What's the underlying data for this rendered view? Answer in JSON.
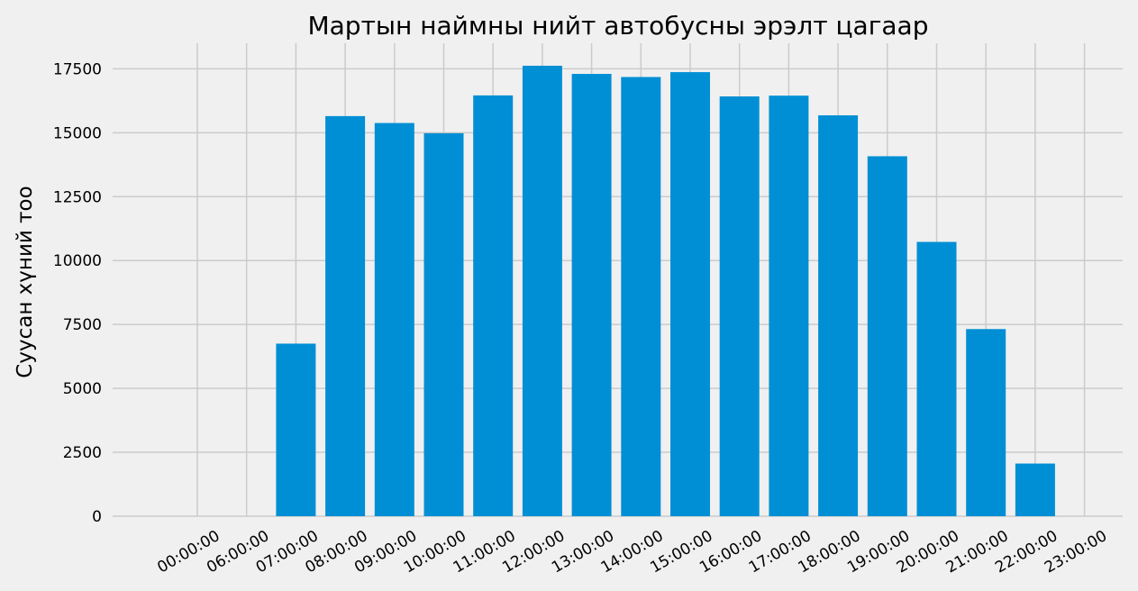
{
  "chart_data": {
    "type": "bar",
    "title": "Мартын наймны нийт автобусны эрэлт цагаар",
    "xlabel": "",
    "ylabel": "Суусан хүний тоо",
    "categories": [
      "00:00:00",
      "06:00:00",
      "07:00:00",
      "08:00:00",
      "09:00:00",
      "10:00:00",
      "11:00:00",
      "12:00:00",
      "13:00:00",
      "14:00:00",
      "15:00:00",
      "16:00:00",
      "17:00:00",
      "18:00:00",
      "19:00:00",
      "20:00:00",
      "21:00:00",
      "22:00:00",
      "23:00:00"
    ],
    "values": [
      0,
      0,
      6750,
      15650,
      15380,
      14980,
      16460,
      17620,
      17300,
      17180,
      17370,
      16420,
      16450,
      15680,
      14080,
      10730,
      7320,
      2060,
      0
    ],
    "ylim": [
      0,
      18500
    ],
    "yticks": [
      0,
      2500,
      5000,
      7500,
      10000,
      12500,
      15000,
      17500
    ],
    "ytick_labels": [
      "0",
      "2500",
      "5000",
      "7500",
      "10000",
      "12500",
      "15000",
      "17500"
    ],
    "grid": true,
    "bar_color": "#008fd5",
    "background_color": "#f0f0f0",
    "grid_color": "#cbcbcb"
  }
}
